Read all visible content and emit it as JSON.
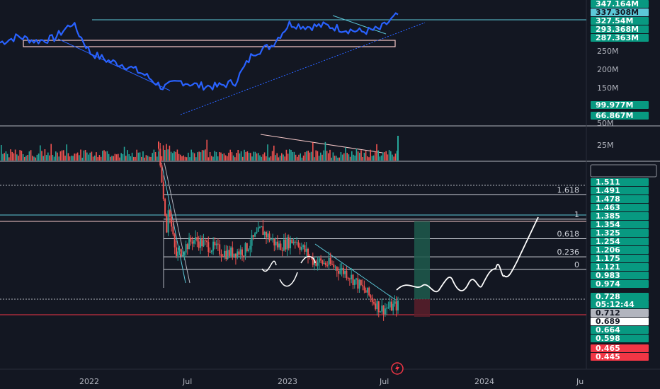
{
  "chart_data": [
    {
      "panel": "top-indicator",
      "type": "line",
      "series": [
        {
          "color": "#2962ff",
          "x": [
            "2021-09",
            "2021-10",
            "2021-11",
            "2021-12",
            "2022-01",
            "2022-02",
            "2022-03",
            "2022-04",
            "2022-05",
            "2022-06",
            "2022-07",
            "2022-08",
            "2022-09",
            "2022-10",
            "2022-11",
            "2022-12",
            "2023-01",
            "2023-02",
            "2023-03",
            "2023-04",
            "2023-05",
            "2023-06",
            "2023-07"
          ],
          "values": [
            268,
            285,
            272,
            280,
            322,
            240,
            218,
            205,
            180,
            145,
            162,
            150,
            148,
            160,
            240,
            260,
            320,
            312,
            315,
            305,
            298,
            305,
            345
          ]
        }
      ],
      "price_tags": [
        {
          "label": "347.164M",
          "color": "#089981"
        },
        {
          "label": "337.308M",
          "color": "#5cc8d8"
        },
        {
          "label": "327.54M",
          "color": "#089981"
        },
        {
          "label": "293.368M",
          "color": "#089981"
        },
        {
          "label": "287.363M",
          "color": "#089981"
        },
        {
          "label": "99.977M",
          "color": "#089981"
        },
        {
          "label": "66.867M",
          "color": "#089981"
        }
      ],
      "axis_ticks": [
        "250M",
        "200M",
        "150M",
        "50M"
      ]
    },
    {
      "panel": "volume",
      "type": "bar",
      "axis_ticks": [
        "25M"
      ],
      "colors": {
        "up": "#26a69a",
        "down": "#ef5350"
      }
    },
    {
      "panel": "price",
      "type": "candlestick",
      "x": [
        "2022-05",
        "2022-06",
        "2022-07",
        "2022-08",
        "2022-09",
        "2022-10",
        "2022-11",
        "2022-12",
        "2023-01",
        "2023-02",
        "2023-03",
        "2023-04",
        "2023-05",
        "2023-06",
        "2023-07"
      ],
      "close": [
        1.9,
        1.08,
        1.2,
        1.15,
        1.1,
        1.12,
        1.27,
        1.15,
        1.2,
        1.05,
        1.02,
        0.96,
        0.84,
        0.7,
        0.728
      ],
      "fib_levels": [
        {
          "label": "1.618",
          "value": 1.52
        },
        {
          "label": "1",
          "value": 1.345
        },
        {
          "label": "0.618",
          "value": 1.205
        },
        {
          "label": "0.236",
          "value": 1.075
        },
        {
          "label": "0",
          "value": 0.985
        }
      ],
      "price_labels": [
        {
          "label": "1.511",
          "color": "#089981"
        },
        {
          "label": "1.491",
          "color": "#089981"
        },
        {
          "label": "1.478",
          "color": "#089981"
        },
        {
          "label": "1.463",
          "color": "#089981"
        },
        {
          "label": "1.385",
          "color": "#089981"
        },
        {
          "label": "1.354",
          "color": "#089981"
        },
        {
          "label": "1.325",
          "color": "#089981"
        },
        {
          "label": "1.254",
          "color": "#089981"
        },
        {
          "label": "1.206",
          "color": "#089981"
        },
        {
          "label": "1.175",
          "color": "#089981"
        },
        {
          "label": "1.121",
          "color": "#089981"
        },
        {
          "label": "0.983",
          "color": "#089981"
        },
        {
          "label": "0.974",
          "color": "#089981"
        },
        {
          "label": "0.728",
          "color": "#089981"
        },
        {
          "label": "0.712",
          "color": "#b2b5be"
        },
        {
          "label": "0.689",
          "color": "#ffffff"
        },
        {
          "label": "0.664",
          "color": "#089981"
        },
        {
          "label": "0.598",
          "color": "#089981"
        },
        {
          "label": "0.465",
          "color": "#f23645"
        },
        {
          "label": "0.445",
          "color": "#f23645"
        }
      ],
      "countdown": "05:12:44"
    }
  ],
  "x_axis": [
    "2022",
    "Jul",
    "2023",
    "Jul",
    "2024",
    "Ju"
  ],
  "colors": {
    "background": "#131722",
    "up": "#26a69a",
    "down": "#ef5350",
    "line": "#2962ff",
    "axis_text": "#b2b5be"
  }
}
